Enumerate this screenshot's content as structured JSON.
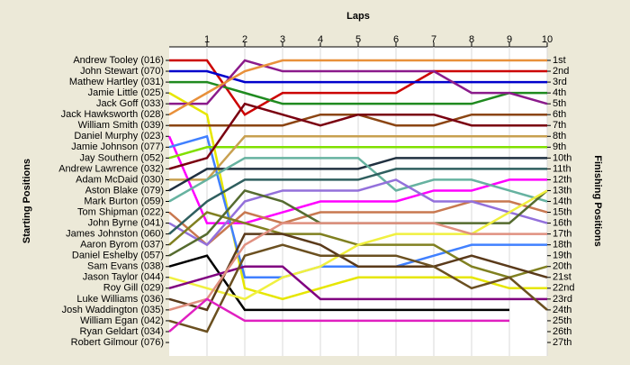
{
  "chart_data": {
    "type": "lap",
    "title": "Laps",
    "y_label": "Starting Positions",
    "y2_label": "Finishing Positions",
    "x": [
      0,
      1,
      2,
      3,
      4,
      5,
      6,
      7,
      8,
      9,
      10
    ],
    "xlim": [
      0,
      10
    ],
    "xticks": [
      1,
      2,
      3,
      4,
      5,
      6,
      7,
      8,
      9,
      10
    ],
    "ylim": [
      1,
      27
    ],
    "grid": true,
    "finishing_labels": [
      "1st",
      "2nd",
      "3rd",
      "4th",
      "5th",
      "6th",
      "7th",
      "8th",
      "9th",
      "10th",
      "11th",
      "12th",
      "13th",
      "14th",
      "15th",
      "16th",
      "17th",
      "18th",
      "19th",
      "20th",
      "21st",
      "22nd",
      "23rd",
      "24th",
      "25th",
      "26th",
      "27th"
    ],
    "series": [
      {
        "name": "Andrew Tooley (016)",
        "color": "#cc0000",
        "values": [
          1,
          1,
          6,
          4,
          4,
          4,
          4,
          2,
          2,
          2,
          2
        ]
      },
      {
        "name": "John Stewart (070)",
        "color": "#0000cc",
        "values": [
          2,
          2,
          3,
          3,
          3,
          3,
          3,
          3,
          3,
          3,
          3
        ]
      },
      {
        "name": "Mathew Hartley (031)",
        "color": "#1f8a1f",
        "values": [
          3,
          3,
          4,
          5,
          5,
          5,
          5,
          5,
          5,
          4,
          4
        ]
      },
      {
        "name": "Jamie Little (025)",
        "color": "#e6e600",
        "values": [
          4,
          6,
          22,
          23,
          22,
          21,
          21,
          21,
          21,
          22,
          22
        ]
      },
      {
        "name": "Jack Goff (033)",
        "color": "#8b1a8b",
        "values": [
          5,
          5,
          1,
          2,
          2,
          2,
          2,
          2,
          4,
          4,
          5
        ]
      },
      {
        "name": "Jack Hawksworth (028)",
        "color": "#e8903a",
        "values": [
          6,
          4,
          2,
          1,
          1,
          1,
          1,
          1,
          1,
          1,
          1
        ]
      },
      {
        "name": "William Smith (039)",
        "color": "#8b4513",
        "values": [
          7,
          7,
          7,
          7,
          6,
          6,
          7,
          7,
          6,
          6,
          6
        ]
      },
      {
        "name": "Daniel Murphy (023)",
        "color": "#ff00ff",
        "values": [
          8,
          16,
          16,
          15,
          14,
          14,
          14,
          13,
          13,
          12,
          12
        ]
      },
      {
        "name": "Jamie Johnson (077)",
        "color": "#4080ff",
        "values": [
          9,
          8,
          21,
          21,
          20,
          20,
          20,
          19,
          18,
          18,
          18
        ]
      },
      {
        "name": "Jay Southern (052)",
        "color": "#80e000",
        "values": [
          10,
          9,
          9,
          9,
          9,
          9,
          9,
          9,
          9,
          9,
          9
        ]
      },
      {
        "name": "Andrew Lawrence (032)",
        "color": "#7a0010",
        "values": [
          11,
          10,
          5,
          6,
          7,
          6,
          6,
          6,
          7,
          7,
          7
        ]
      },
      {
        "name": "Adam McDaid (030)",
        "color": "#c8a050",
        "values": [
          12,
          12,
          8,
          8,
          8,
          8,
          8,
          8,
          8,
          8,
          8
        ]
      },
      {
        "name": "Aston Blake (079)",
        "color": "#203040",
        "values": [
          13,
          11,
          11,
          11,
          11,
          11,
          10,
          10,
          10,
          10,
          10
        ]
      },
      {
        "name": "Mark Burton (059)",
        "color": "#66b2a0",
        "values": [
          14,
          12,
          10,
          10,
          10,
          10,
          13,
          12,
          12,
          13,
          14
        ]
      },
      {
        "name": "Tom Shipman (022)",
        "color": "#c87850",
        "values": [
          15,
          18,
          15,
          16,
          15,
          15,
          15,
          15,
          14,
          14,
          15
        ]
      },
      {
        "name": "John Byrne (041)",
        "color": "#9370db",
        "values": [
          16,
          18,
          14,
          13,
          13,
          13,
          12,
          14,
          14,
          15,
          16
        ]
      },
      {
        "name": "James Johnston (060)",
        "color": "#2f5f5f",
        "values": [
          17,
          14,
          12,
          12,
          12,
          12,
          11,
          11,
          11,
          11,
          11
        ]
      },
      {
        "name": "Aaron Byrom (037)",
        "color": "#808020",
        "values": [
          18,
          15,
          16,
          17,
          17,
          18,
          18,
          18,
          20,
          21,
          20
        ]
      },
      {
        "name": "Daniel Eshelby (057)",
        "color": "#556b2f",
        "values": [
          19,
          17,
          13,
          14,
          16,
          16,
          16,
          16,
          16,
          16,
          13
        ]
      },
      {
        "name": "Sam Evans (038)",
        "color": "#000000",
        "values": [
          20,
          19,
          24,
          24,
          24,
          24,
          24,
          24,
          24,
          24,
          null
        ]
      },
      {
        "name": "Jason Taylor (044)",
        "color": "#f0f040",
        "values": [
          21,
          22,
          23,
          21,
          20,
          18,
          17,
          17,
          17,
          15,
          13
        ]
      },
      {
        "name": "Roy Gill (029)",
        "color": "#800080",
        "values": [
          22,
          21,
          20,
          20,
          23,
          23,
          23,
          23,
          23,
          23,
          23
        ]
      },
      {
        "name": "Luke Williams (036)",
        "color": "#5a3a1a",
        "values": [
          23,
          24,
          17,
          17,
          18,
          20,
          20,
          20,
          19,
          20,
          21
        ]
      },
      {
        "name": "Josh Waddington (035)",
        "color": "#e09080",
        "values": [
          24,
          23,
          18,
          16,
          16,
          16,
          16,
          16,
          17,
          17,
          17
        ]
      },
      {
        "name": "William Egan (042)",
        "color": "#6b5020",
        "values": [
          25,
          26,
          19,
          18,
          19,
          19,
          19,
          20,
          22,
          21,
          24
        ]
      },
      {
        "name": "Ryan Geldart (034)",
        "color": "#e020c0",
        "values": [
          26,
          23,
          25,
          25,
          25,
          25,
          25,
          25,
          25,
          25,
          null
        ]
      },
      {
        "name": "Robert Gilmour (076)",
        "color": "#808080",
        "values": [
          27,
          null,
          null,
          null,
          null,
          null,
          null,
          null,
          null,
          null,
          null
        ]
      }
    ]
  }
}
